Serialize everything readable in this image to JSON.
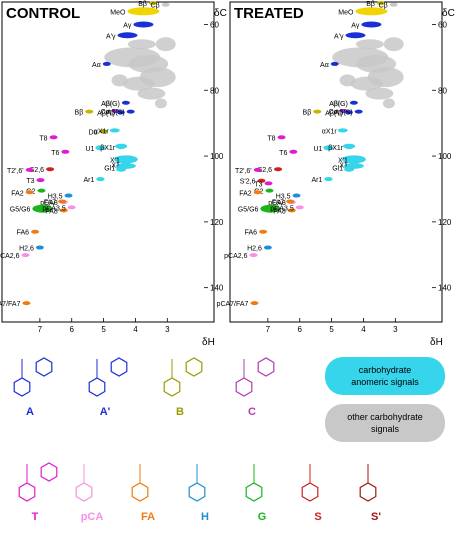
{
  "chart_data": [
    {
      "type": "scatter",
      "title": "CONTROL",
      "xlabel": "δH",
      "ylabel": "δC",
      "xlim": [
        8.0,
        2.1
      ],
      "ylim": [
        55,
        148
      ],
      "x_ticks": [
        7,
        6,
        5,
        4,
        3
      ],
      "y_ticks": [
        60,
        80,
        100,
        120,
        140
      ],
      "grid": false,
      "signals": [
        {
          "label": "MeO",
          "x": 3.75,
          "y": 56.0,
          "color": "#f2d500"
        },
        {
          "label": "Bβ",
          "x": 3.45,
          "y": 53.5,
          "color": "#c9b400"
        },
        {
          "label": "Cβ",
          "x": 3.05,
          "y": 54.0,
          "color": "#c8c8c8"
        },
        {
          "label": "A'γ",
          "x": 4.25,
          "y": 63.3,
          "color": "#1a2fd6"
        },
        {
          "label": "Aγ",
          "x": 3.75,
          "y": 60.0,
          "color": "#1a2fd6"
        },
        {
          "label": "Aα",
          "x": 4.9,
          "y": 72.0,
          "color": "#1a2fd6"
        },
        {
          "label": "Bβ",
          "x": 5.45,
          "y": 86.5,
          "color": "#c9b400"
        },
        {
          "label": "Aβ(G)",
          "x": 4.3,
          "y": 83.8,
          "color": "#1a2fd6"
        },
        {
          "label": "Cα",
          "x": 4.62,
          "y": 86.3,
          "color": "#9b2fd6"
        },
        {
          "label": "Aβ(T)",
          "x": 4.46,
          "y": 86.7,
          "color": "#1a2fd6"
        },
        {
          "label": "Aβ(S)",
          "x": 4.15,
          "y": 86.5,
          "color": "#1a2fd6"
        },
        {
          "label": "Dα",
          "x": 5.0,
          "y": 92.5,
          "color": "#9b9b00"
        },
        {
          "label": "αX1r",
          "x": 4.65,
          "y": 92.2,
          "color": "#37d5ec"
        },
        {
          "label": "T8",
          "x": 6.57,
          "y": 94.3,
          "color": "#e01ad0"
        },
        {
          "label": "T6",
          "x": 6.2,
          "y": 98.7,
          "color": "#e01ad0"
        },
        {
          "label": "U1",
          "x": 5.1,
          "y": 97.5,
          "color": "#37d5ec"
        },
        {
          "label": "βX1r",
          "x": 4.45,
          "y": 97.3,
          "color": "#37d5ec"
        },
        {
          "label": "X'1",
          "x": 4.3,
          "y": 101.0,
          "color": "#37d5ec"
        },
        {
          "label": "X1",
          "x": 4.3,
          "y": 102.5,
          "color": "#37d5ec"
        },
        {
          "label": "S2,6",
          "x": 6.68,
          "y": 104.0,
          "color": "#d02020"
        },
        {
          "label": "T2',6'",
          "x": 7.32,
          "y": 104.2,
          "color": "#e01ad0"
        },
        {
          "label": "Ar1",
          "x": 5.1,
          "y": 107.0,
          "color": "#37d5ec"
        },
        {
          "label": "Gl1",
          "x": 4.45,
          "y": 103.5,
          "color": "#37d5ec"
        },
        {
          "label": "T3",
          "x": 6.98,
          "y": 107.3,
          "color": "#e01ad0"
        },
        {
          "label": "G2",
          "x": 6.95,
          "y": 110.5,
          "color": "#1bb41b"
        },
        {
          "label": "FA2",
          "x": 7.32,
          "y": 111.0,
          "color": "#f07b10"
        },
        {
          "label": "H3,5",
          "x": 6.1,
          "y": 112.0,
          "color": "#1c8fd6"
        },
        {
          "label": "pCA8",
          "x": 6.25,
          "y": 114.0,
          "color": "#f590e8"
        },
        {
          "label": "FA7",
          "x": 6.3,
          "y": 113.8,
          "color": "#f07b10"
        },
        {
          "label": "G5/G6",
          "x": 6.92,
          "y": 116.0,
          "color": "#1bb41b"
        },
        {
          "label": "FA8",
          "x": 6.25,
          "y": 116.5,
          "color": "#f07b10"
        },
        {
          "label": "pCA3,5",
          "x": 6.0,
          "y": 115.6,
          "color": "#f590e8"
        },
        {
          "label": "FA6",
          "x": 7.15,
          "y": 123.0,
          "color": "#f07b10"
        },
        {
          "label": "H2,6",
          "x": 7.0,
          "y": 127.8,
          "color": "#1c8fd6"
        },
        {
          "label": "pCA2,6",
          "x": 7.45,
          "y": 130.1,
          "color": "#f590e8"
        },
        {
          "label": "pCA7/FA7",
          "x": 7.42,
          "y": 144.7,
          "color": "#f07b10"
        }
      ],
      "anomeric_signals_present": true
    },
    {
      "type": "scatter",
      "title": "TREATED",
      "xlabel": "δH",
      "ylabel": "δC",
      "xlim": [
        8.0,
        2.1
      ],
      "ylim": [
        55,
        148
      ],
      "x_ticks": [
        7,
        6,
        5,
        4,
        3
      ],
      "y_ticks": [
        60,
        80,
        100,
        120,
        140
      ],
      "grid": false,
      "signals": [
        {
          "label": "MeO",
          "x": 3.75,
          "y": 56.0,
          "color": "#f2d500"
        },
        {
          "label": "Bβ",
          "x": 3.45,
          "y": 53.5,
          "color": "#c9b400"
        },
        {
          "label": "Cβ",
          "x": 3.05,
          "y": 54.0,
          "color": "#c8c8c8"
        },
        {
          "label": "A'γ",
          "x": 4.25,
          "y": 63.3,
          "color": "#1a2fd6"
        },
        {
          "label": "Aγ",
          "x": 3.75,
          "y": 60.0,
          "color": "#1a2fd6"
        },
        {
          "label": "Aα",
          "x": 4.9,
          "y": 72.0,
          "color": "#1a2fd6"
        },
        {
          "label": "Bβ",
          "x": 5.45,
          "y": 86.5,
          "color": "#c9b400"
        },
        {
          "label": "Aβ(G)",
          "x": 4.3,
          "y": 83.8,
          "color": "#1a2fd6"
        },
        {
          "label": "Cα",
          "x": 4.62,
          "y": 86.3,
          "color": "#9b2fd6"
        },
        {
          "label": "Aβ(T)",
          "x": 4.46,
          "y": 86.7,
          "color": "#1a2fd6"
        },
        {
          "label": "Aβ(S)",
          "x": 4.15,
          "y": 86.5,
          "color": "#1a2fd6"
        },
        {
          "label": "αX1r",
          "x": 4.65,
          "y": 92.2,
          "color": "#37d5ec"
        },
        {
          "label": "T8",
          "x": 6.57,
          "y": 94.3,
          "color": "#e01ad0"
        },
        {
          "label": "T6",
          "x": 6.2,
          "y": 98.7,
          "color": "#e01ad0"
        },
        {
          "label": "U1",
          "x": 5.1,
          "y": 97.5,
          "color": "#37d5ec"
        },
        {
          "label": "βX1r",
          "x": 4.45,
          "y": 97.3,
          "color": "#37d5ec"
        },
        {
          "label": "X'1",
          "x": 4.3,
          "y": 101.0,
          "color": "#37d5ec"
        },
        {
          "label": "X1",
          "x": 4.3,
          "y": 102.5,
          "color": "#37d5ec"
        },
        {
          "label": "S2,6",
          "x": 6.68,
          "y": 104.0,
          "color": "#d02020"
        },
        {
          "label": "T2',6'",
          "x": 7.32,
          "y": 104.2,
          "color": "#e01ad0"
        },
        {
          "label": "S'2,6",
          "x": 7.2,
          "y": 107.5,
          "color": "#d02020"
        },
        {
          "label": "Ar1",
          "x": 5.1,
          "y": 107.0,
          "color": "#37d5ec"
        },
        {
          "label": "Gl1",
          "x": 4.45,
          "y": 103.5,
          "color": "#37d5ec"
        },
        {
          "label": "T3",
          "x": 6.98,
          "y": 108.3,
          "color": "#e01ad0"
        },
        {
          "label": "G2",
          "x": 6.95,
          "y": 110.5,
          "color": "#1bb41b"
        },
        {
          "label": "FA2",
          "x": 7.32,
          "y": 111.0,
          "color": "#f07b10"
        },
        {
          "label": "H3,5",
          "x": 6.1,
          "y": 112.0,
          "color": "#1c8fd6"
        },
        {
          "label": "pCA8",
          "x": 6.25,
          "y": 114.0,
          "color": "#f590e8"
        },
        {
          "label": "FA7",
          "x": 6.3,
          "y": 113.8,
          "color": "#f07b10"
        },
        {
          "label": "G5/G6",
          "x": 6.92,
          "y": 116.0,
          "color": "#1bb41b"
        },
        {
          "label": "FA8",
          "x": 6.25,
          "y": 116.5,
          "color": "#f07b10"
        },
        {
          "label": "pCA3,5",
          "x": 6.0,
          "y": 115.6,
          "color": "#f590e8"
        },
        {
          "label": "FA6",
          "x": 7.15,
          "y": 123.0,
          "color": "#f07b10"
        },
        {
          "label": "H2,6",
          "x": 7.0,
          "y": 127.8,
          "color": "#1c8fd6"
        },
        {
          "label": "pCA2,6",
          "x": 7.45,
          "y": 130.1,
          "color": "#f590e8"
        },
        {
          "label": "pCA7/FA7",
          "x": 7.42,
          "y": 144.7,
          "color": "#f07b10"
        }
      ],
      "anomeric_signals_present": true
    }
  ],
  "panel_labels": {
    "control": "CONTROL",
    "treated": "TREATED",
    "x_axis": "δH",
    "y_axis": "δC"
  },
  "legend": {
    "anomeric": {
      "label_line1": "carbohydrate",
      "label_line2": "anomeric signals",
      "color": "#37d5ec"
    },
    "other": {
      "label_line1": "other carbohydrate",
      "label_line2": "signals",
      "color": "#c8c8c8"
    }
  },
  "structures": [
    {
      "label": "A",
      "color": "#1a2fd6"
    },
    {
      "label": "A'",
      "color": "#1a2fd6"
    },
    {
      "label": "B",
      "color": "#9b9b00"
    },
    {
      "label": "C",
      "color": "#b03cb0"
    },
    {
      "label": "T",
      "color": "#e01ad0"
    },
    {
      "label": "pCA",
      "color": "#f590e8"
    },
    {
      "label": "FA",
      "color": "#f07b10"
    },
    {
      "label": "H",
      "color": "#1c8fd6"
    },
    {
      "label": "G",
      "color": "#1bb41b"
    },
    {
      "label": "S",
      "color": "#d02020"
    },
    {
      "label": "S'",
      "color": "#a01818"
    }
  ]
}
